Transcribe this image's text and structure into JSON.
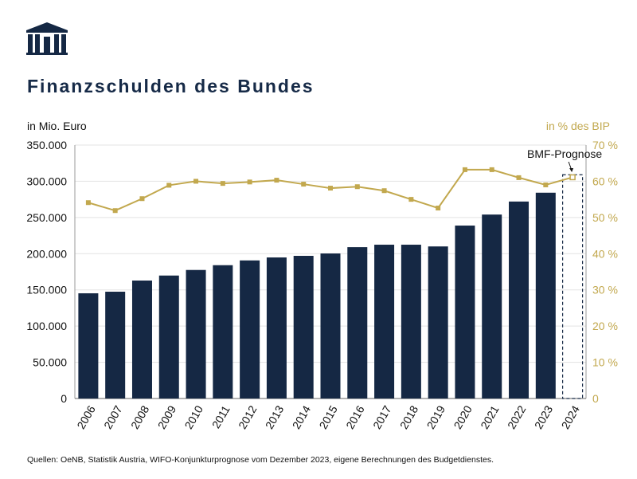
{
  "chart_data": {
    "type": "bar",
    "title": "Finanzschulden des Bundes",
    "ylabel": "in Mio. Euro",
    "y2label": "in % des BIP",
    "categories": [
      "2006",
      "2007",
      "2008",
      "2009",
      "2010",
      "2011",
      "2012",
      "2013",
      "2014",
      "2015",
      "2016",
      "2017",
      "2018",
      "2019",
      "2020",
      "2021",
      "2022",
      "2023",
      "2024"
    ],
    "series": [
      {
        "type": "bar",
        "axis": "left",
        "values": [
          145300,
          147500,
          162900,
          169800,
          177500,
          184100,
          190700,
          194800,
          197000,
          200300,
          209000,
          212400,
          212400,
          210000,
          238800,
          254000,
          272000,
          284200,
          309000
        ],
        "color": "#152844",
        "forecast_last": true
      },
      {
        "type": "line",
        "axis": "right",
        "values": [
          54.1,
          51.9,
          55.2,
          58.9,
          60.0,
          59.4,
          59.8,
          60.3,
          59.2,
          58.1,
          58.5,
          57.4,
          55.0,
          52.6,
          63.2,
          63.2,
          61.0,
          59.0,
          61.1
        ],
        "color": "#c2a84e"
      }
    ],
    "ylim": [
      0,
      350000
    ],
    "yticks": [
      "0",
      "50.000",
      "100.000",
      "150.000",
      "200.000",
      "250.000",
      "300.000",
      "350.000"
    ],
    "y2lim": [
      0,
      70
    ],
    "y2ticks": [
      "0",
      "10 %",
      "20 %",
      "30 %",
      "40 %",
      "50 %",
      "60 %",
      "70 %"
    ],
    "annotation": "BMF-Prognose",
    "grid": true
  },
  "source": "Quellen: OeNB, Statistik Austria, WIFO-Konjunkturprognose vom Dezember 2023, eigene Berechnungen des Budgetdienstes."
}
